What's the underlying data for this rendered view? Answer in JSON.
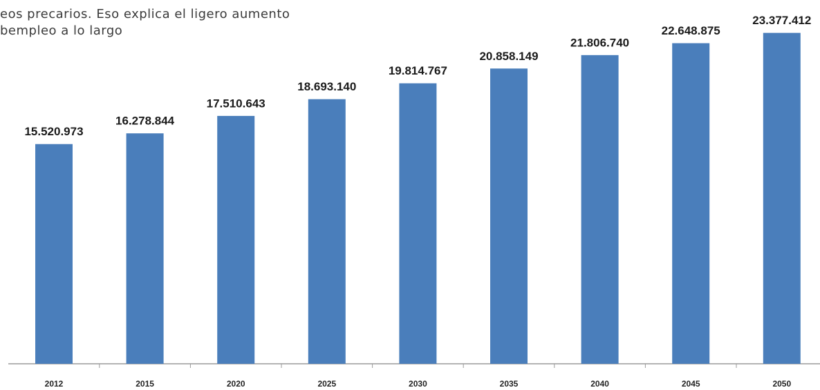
{
  "chart_data": {
    "type": "bar",
    "annotations": [
      "eos precarios. Eso explica el ligero aumento",
      "bempleo a lo largo"
    ],
    "categories": [
      "2012",
      "2015",
      "2020",
      "2025",
      "2030",
      "2035",
      "2040",
      "2045",
      "2050"
    ],
    "values": [
      15520973,
      16278844,
      17510643,
      18693140,
      19814767,
      20858149,
      21806740,
      22648875,
      23377412
    ],
    "value_labels": [
      "15.520.973",
      "16.278.844",
      "17.510.643",
      "18.693.140",
      "19.814.767",
      "20.858.149",
      "21.806.740",
      "22.648.875",
      "23.377.412"
    ],
    "color": "#4a7ebb",
    "ylim": [
      0,
      25700000
    ]
  }
}
